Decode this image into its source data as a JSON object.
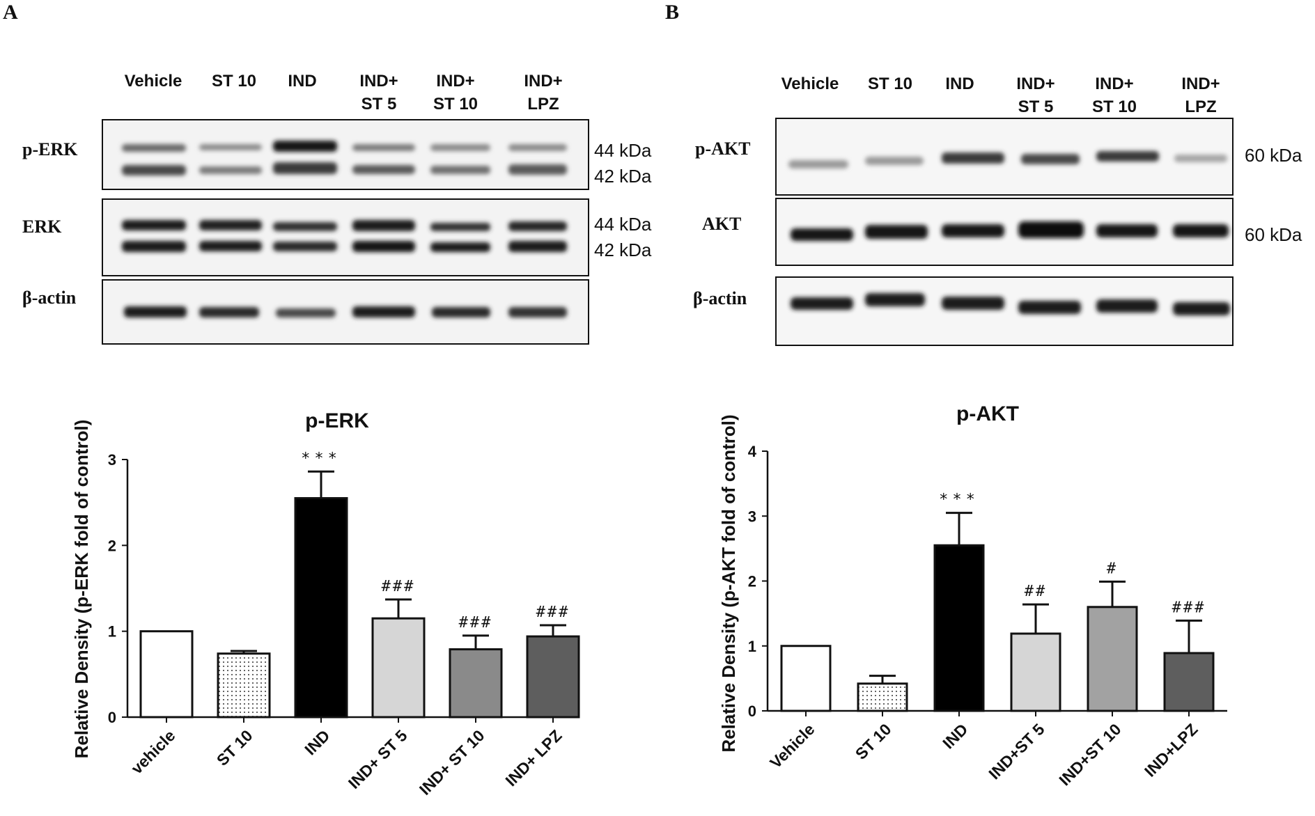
{
  "panels": [
    {
      "letter": "A",
      "blot": {
        "lanes": [
          "Vehicle",
          "ST 10",
          "IND",
          "IND+|ST 5",
          "IND+|ST 10",
          "IND+|LPZ"
        ],
        "rows": [
          {
            "label": "p-ERK",
            "markers": [
              "44 kDa",
              "42 kDa"
            ]
          },
          {
            "label": "ERK",
            "markers": [
              "44 kDa",
              "42 kDa"
            ]
          },
          {
            "label": "β-actin",
            "markers": []
          }
        ]
      }
    },
    {
      "letter": "B",
      "blot": {
        "lanes": [
          "Vehicle",
          "ST 10",
          "IND",
          "IND+|ST 5",
          "IND+|ST 10",
          "IND+|LPZ"
        ],
        "rows": [
          {
            "label": "p-AKT",
            "markers": [
              "60 kDa"
            ]
          },
          {
            "label": "AKT",
            "markers": [
              "60 kDa"
            ]
          },
          {
            "label": "β-actin",
            "markers": []
          }
        ]
      }
    }
  ],
  "chart_data": [
    {
      "type": "bar",
      "title": "p-ERK",
      "xlabel": "",
      "ylabel": "Relative Density (p-ERK fold of control)",
      "ylim": [
        0,
        3
      ],
      "yticks": [
        0,
        1,
        2,
        3
      ],
      "categories": [
        "vehicle",
        "ST 10",
        "IND",
        "IND+ ST 5",
        "IND+ ST 10",
        "IND+ LPZ"
      ],
      "values": [
        1.0,
        0.74,
        2.55,
        1.15,
        0.79,
        0.94
      ],
      "errors": [
        0.0,
        0.03,
        0.31,
        0.22,
        0.16,
        0.13
      ],
      "annotations": [
        "",
        "",
        "***",
        "###",
        "###",
        "###"
      ],
      "fills": [
        "#ffffff",
        "dots",
        "#000000",
        "#d6d6d6",
        "#8a8a8a",
        "#5e5e5e"
      ],
      "grid": false
    },
    {
      "type": "bar",
      "title": "p-AKT",
      "xlabel": "",
      "ylabel": "Relative Density (p-AKT fold of control)",
      "ylim": [
        0,
        4
      ],
      "yticks": [
        0,
        1,
        2,
        3,
        4
      ],
      "categories": [
        "Vehicle",
        "ST 10",
        "IND",
        "IND+ST 5",
        "IND+ST 10",
        "IND+LPZ"
      ],
      "values": [
        1.0,
        0.42,
        2.55,
        1.19,
        1.6,
        0.89
      ],
      "errors": [
        0.0,
        0.12,
        0.5,
        0.45,
        0.39,
        0.5
      ],
      "annotations": [
        "",
        "",
        "***",
        "##",
        "#",
        "###"
      ],
      "fills": [
        "#ffffff",
        "dots",
        "#000000",
        "#d6d6d6",
        "#a2a2a2",
        "#5e5e5e"
      ],
      "grid": false
    }
  ]
}
